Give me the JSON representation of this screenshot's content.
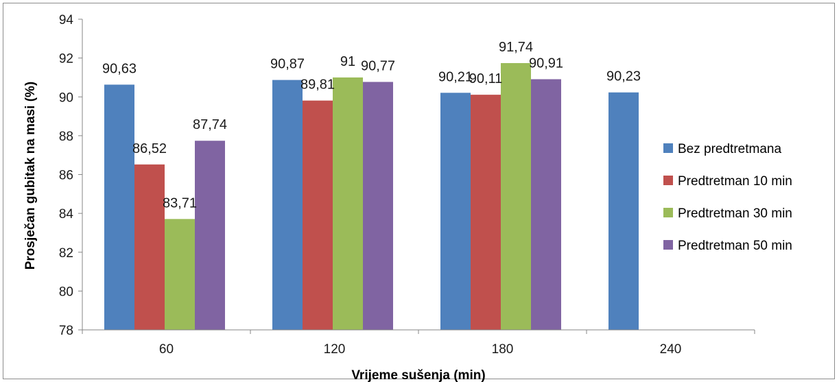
{
  "chart_data": {
    "type": "bar",
    "title": "",
    "xlabel": "Vrijeme sušenja (min)",
    "ylabel": "Prosječan gubitak na masi (%)",
    "categories": [
      "60",
      "120",
      "180",
      "240"
    ],
    "ylim": [
      78,
      94
    ],
    "yticks": [
      "78",
      "80",
      "82",
      "84",
      "86",
      "88",
      "90",
      "92",
      "94"
    ],
    "grid": false,
    "legend_position": "right",
    "series": [
      {
        "name": "Bez predtretmana",
        "color": "#4f81bd",
        "values": [
          90.63,
          90.87,
          90.21,
          90.23
        ],
        "labels": [
          "90,63",
          "90,87",
          "90,21",
          "90,23"
        ]
      },
      {
        "name": "Predtretman 10 min",
        "color": "#c0504d",
        "values": [
          86.52,
          89.81,
          90.11,
          null
        ],
        "labels": [
          "86,52",
          "89,81",
          "90,11",
          ""
        ]
      },
      {
        "name": "Predtretman 30 min",
        "color": "#9bbb59",
        "values": [
          83.71,
          91,
          91.74,
          null
        ],
        "labels": [
          "83,71",
          "91",
          "91,74",
          ""
        ]
      },
      {
        "name": "Predtretman 50 min",
        "color": "#8064a2",
        "values": [
          87.74,
          90.77,
          90.91,
          null
        ],
        "labels": [
          "87,74",
          "90,77",
          "90,91",
          ""
        ]
      }
    ]
  }
}
